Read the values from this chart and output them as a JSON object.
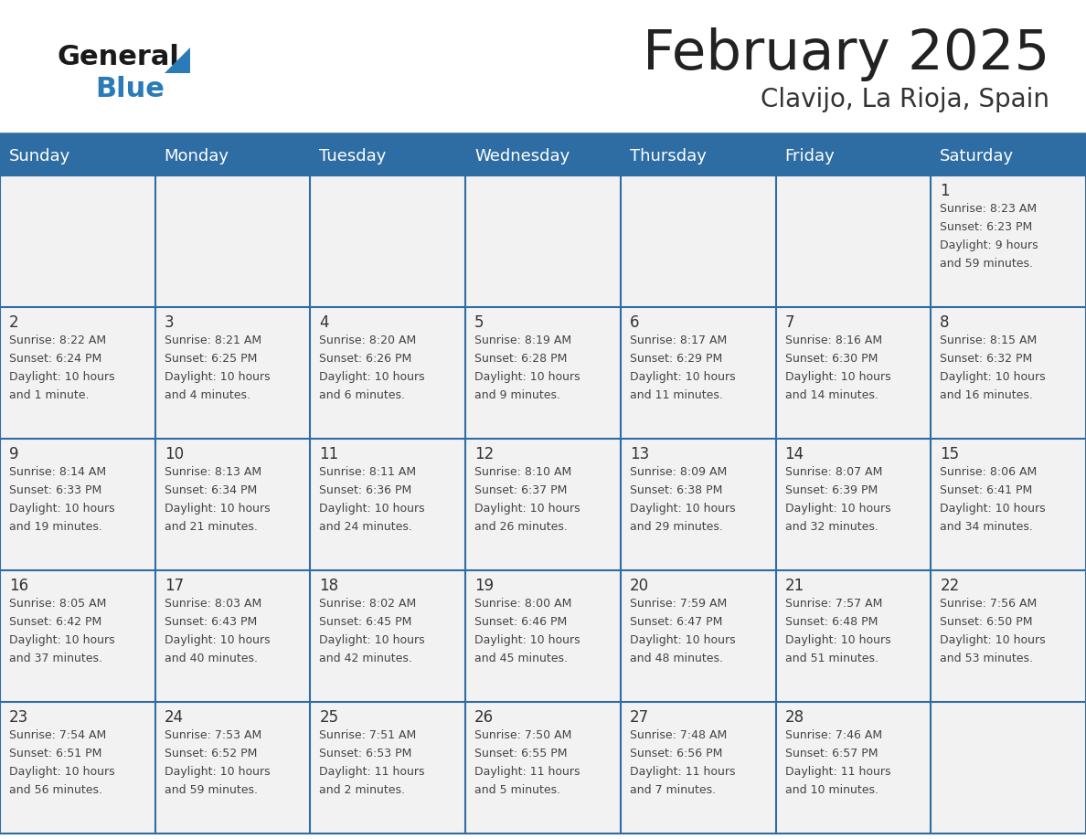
{
  "title": "February 2025",
  "subtitle": "Clavijo, La Rioja, Spain",
  "header_bg": "#2E6DA4",
  "header_text": "#FFFFFF",
  "cell_bg": "#F2F2F2",
  "border_color": "#2E6DA4",
  "day_headers": [
    "Sunday",
    "Monday",
    "Tuesday",
    "Wednesday",
    "Thursday",
    "Friday",
    "Saturday"
  ],
  "title_color": "#222222",
  "subtitle_color": "#333333",
  "logo_general_color": "#1a1a1a",
  "logo_blue_color": "#2B7BB9",
  "logo_triangle_color": "#2B7BB9",
  "days": [
    {
      "date": 1,
      "col": 6,
      "row": 0,
      "sunrise": "8:23 AM",
      "sunset": "6:23 PM",
      "daylight": "9 hours and 59 minutes."
    },
    {
      "date": 2,
      "col": 0,
      "row": 1,
      "sunrise": "8:22 AM",
      "sunset": "6:24 PM",
      "daylight": "10 hours and 1 minute."
    },
    {
      "date": 3,
      "col": 1,
      "row": 1,
      "sunrise": "8:21 AM",
      "sunset": "6:25 PM",
      "daylight": "10 hours and 4 minutes."
    },
    {
      "date": 4,
      "col": 2,
      "row": 1,
      "sunrise": "8:20 AM",
      "sunset": "6:26 PM",
      "daylight": "10 hours and 6 minutes."
    },
    {
      "date": 5,
      "col": 3,
      "row": 1,
      "sunrise": "8:19 AM",
      "sunset": "6:28 PM",
      "daylight": "10 hours and 9 minutes."
    },
    {
      "date": 6,
      "col": 4,
      "row": 1,
      "sunrise": "8:17 AM",
      "sunset": "6:29 PM",
      "daylight": "10 hours and 11 minutes."
    },
    {
      "date": 7,
      "col": 5,
      "row": 1,
      "sunrise": "8:16 AM",
      "sunset": "6:30 PM",
      "daylight": "10 hours and 14 minutes."
    },
    {
      "date": 8,
      "col": 6,
      "row": 1,
      "sunrise": "8:15 AM",
      "sunset": "6:32 PM",
      "daylight": "10 hours and 16 minutes."
    },
    {
      "date": 9,
      "col": 0,
      "row": 2,
      "sunrise": "8:14 AM",
      "sunset": "6:33 PM",
      "daylight": "10 hours and 19 minutes."
    },
    {
      "date": 10,
      "col": 1,
      "row": 2,
      "sunrise": "8:13 AM",
      "sunset": "6:34 PM",
      "daylight": "10 hours and 21 minutes."
    },
    {
      "date": 11,
      "col": 2,
      "row": 2,
      "sunrise": "8:11 AM",
      "sunset": "6:36 PM",
      "daylight": "10 hours and 24 minutes."
    },
    {
      "date": 12,
      "col": 3,
      "row": 2,
      "sunrise": "8:10 AM",
      "sunset": "6:37 PM",
      "daylight": "10 hours and 26 minutes."
    },
    {
      "date": 13,
      "col": 4,
      "row": 2,
      "sunrise": "8:09 AM",
      "sunset": "6:38 PM",
      "daylight": "10 hours and 29 minutes."
    },
    {
      "date": 14,
      "col": 5,
      "row": 2,
      "sunrise": "8:07 AM",
      "sunset": "6:39 PM",
      "daylight": "10 hours and 32 minutes."
    },
    {
      "date": 15,
      "col": 6,
      "row": 2,
      "sunrise": "8:06 AM",
      "sunset": "6:41 PM",
      "daylight": "10 hours and 34 minutes."
    },
    {
      "date": 16,
      "col": 0,
      "row": 3,
      "sunrise": "8:05 AM",
      "sunset": "6:42 PM",
      "daylight": "10 hours and 37 minutes."
    },
    {
      "date": 17,
      "col": 1,
      "row": 3,
      "sunrise": "8:03 AM",
      "sunset": "6:43 PM",
      "daylight": "10 hours and 40 minutes."
    },
    {
      "date": 18,
      "col": 2,
      "row": 3,
      "sunrise": "8:02 AM",
      "sunset": "6:45 PM",
      "daylight": "10 hours and 42 minutes."
    },
    {
      "date": 19,
      "col": 3,
      "row": 3,
      "sunrise": "8:00 AM",
      "sunset": "6:46 PM",
      "daylight": "10 hours and 45 minutes."
    },
    {
      "date": 20,
      "col": 4,
      "row": 3,
      "sunrise": "7:59 AM",
      "sunset": "6:47 PM",
      "daylight": "10 hours and 48 minutes."
    },
    {
      "date": 21,
      "col": 5,
      "row": 3,
      "sunrise": "7:57 AM",
      "sunset": "6:48 PM",
      "daylight": "10 hours and 51 minutes."
    },
    {
      "date": 22,
      "col": 6,
      "row": 3,
      "sunrise": "7:56 AM",
      "sunset": "6:50 PM",
      "daylight": "10 hours and 53 minutes."
    },
    {
      "date": 23,
      "col": 0,
      "row": 4,
      "sunrise": "7:54 AM",
      "sunset": "6:51 PM",
      "daylight": "10 hours and 56 minutes."
    },
    {
      "date": 24,
      "col": 1,
      "row": 4,
      "sunrise": "7:53 AM",
      "sunset": "6:52 PM",
      "daylight": "10 hours and 59 minutes."
    },
    {
      "date": 25,
      "col": 2,
      "row": 4,
      "sunrise": "7:51 AM",
      "sunset": "6:53 PM",
      "daylight": "11 hours and 2 minutes."
    },
    {
      "date": 26,
      "col": 3,
      "row": 4,
      "sunrise": "7:50 AM",
      "sunset": "6:55 PM",
      "daylight": "11 hours and 5 minutes."
    },
    {
      "date": 27,
      "col": 4,
      "row": 4,
      "sunrise": "7:48 AM",
      "sunset": "6:56 PM",
      "daylight": "11 hours and 7 minutes."
    },
    {
      "date": 28,
      "col": 5,
      "row": 4,
      "sunrise": "7:46 AM",
      "sunset": "6:57 PM",
      "daylight": "11 hours and 10 minutes."
    }
  ]
}
